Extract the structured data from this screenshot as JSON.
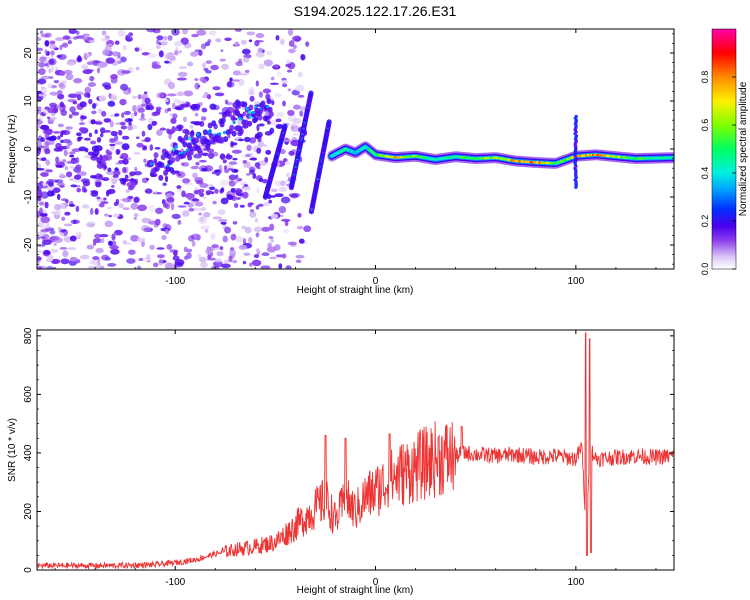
{
  "title": "S194.2025.122.17.26.E31",
  "colors": {
    "snr_line": "#ee3333",
    "colormap": [
      "#ffffff",
      "#e6d2f8",
      "#b57cf0",
      "#7a24e8",
      "#5a00e0",
      "#2a00ff",
      "#0060ff",
      "#00c8ff",
      "#00ff9a",
      "#60ff00",
      "#c8ff00",
      "#ffd000",
      "#ff7a00",
      "#ff0000",
      "#ff00b0"
    ]
  },
  "chart_data": [
    {
      "type": "heatmap",
      "title": "S194.2025.122.17.26.E31",
      "xlabel": "Height of straight line (km)",
      "ylabel": "Frequency (Hz)",
      "xlim": [
        -169,
        149
      ],
      "ylim": [
        -25,
        25
      ],
      "x_ticks": [
        -100,
        0,
        100
      ],
      "x_tick_labels": [
        "-100",
        "0",
        "100"
      ],
      "y_ticks": [
        -20,
        -10,
        0,
        10,
        20
      ],
      "y_tick_labels": [
        "-20",
        "-10",
        "0",
        "10",
        "20"
      ],
      "colorbar": {
        "label": "Normalized spectral amplitude",
        "range": [
          0,
          1
        ],
        "ticks": [
          0.0,
          0.2,
          0.4,
          0.6,
          0.8
        ],
        "tick_labels": [
          "0.0",
          "0.2",
          "0.4",
          "0.6",
          "0.8"
        ]
      },
      "features": {
        "main_line": {
          "x": [
            -22,
            -15,
            -10,
            -5,
            0,
            10,
            20,
            30,
            40,
            50,
            60,
            70,
            80,
            90,
            100,
            110,
            120,
            130,
            149
          ],
          "frequency_hz": [
            -1.5,
            0,
            -0.8,
            0.5,
            -1.2,
            -1.8,
            -1.5,
            -2.2,
            -1.6,
            -2.0,
            -1.8,
            -2.5,
            -2.8,
            -3.0,
            -1.5,
            -1.2,
            -1.6,
            -2.0,
            -1.8
          ],
          "amplitude": [
            0.45,
            0.5,
            0.4,
            0.45,
            0.55,
            0.8,
            0.6,
            0.45,
            0.55,
            0.6,
            0.65,
            0.85,
            0.9,
            0.6,
            0.75,
            0.9,
            0.7,
            0.55,
            0.5
          ]
        },
        "sloped_band": {
          "x": [
            -110,
            -100,
            -90,
            -80,
            -70,
            -60,
            -55
          ],
          "frequency_hz": [
            -4,
            -1,
            1.5,
            4,
            6,
            8,
            9
          ],
          "amplitude": [
            0.35,
            0.3,
            0.35,
            0.3,
            0.3,
            0.25,
            0.2
          ]
        },
        "streaks": [
          {
            "x0": -55,
            "f0": -10,
            "x1": -45,
            "f1": 5
          },
          {
            "x0": -42,
            "f0": -8,
            "x1": -32,
            "f1": 12
          },
          {
            "x0": -32,
            "f0": -13,
            "x1": -23,
            "f1": 6
          }
        ],
        "vertical_spike": {
          "x": 100,
          "f_range": [
            -8,
            7
          ]
        }
      }
    },
    {
      "type": "line",
      "xlabel": "Height of straight line (km)",
      "ylabel": "SNR (10 * v/v)",
      "xlim": [
        -169,
        149
      ],
      "ylim": [
        0,
        820
      ],
      "x_ticks": [
        -100,
        0,
        100
      ],
      "x_tick_labels": [
        "-100",
        "0",
        "100"
      ],
      "y_ticks": [
        0,
        200,
        400,
        600,
        800
      ],
      "y_tick_labels": [
        "0",
        "200",
        "400",
        "600",
        "800"
      ],
      "x": [
        -169,
        -150,
        -130,
        -110,
        -100,
        -90,
        -80,
        -70,
        -60,
        -50,
        -40,
        -30,
        -25,
        -20,
        -15,
        -10,
        -5,
        0,
        10,
        20,
        30,
        40,
        45,
        50,
        60,
        70,
        80,
        90,
        100,
        103,
        105,
        107,
        110,
        120,
        130,
        140,
        149
      ],
      "y": [
        15,
        15,
        15,
        18,
        25,
        35,
        55,
        70,
        80,
        95,
        150,
        210,
        240,
        170,
        240,
        200,
        250,
        270,
        320,
        350,
        380,
        390,
        400,
        395,
        390,
        395,
        385,
        390,
        380,
        420,
        150,
        420,
        380,
        385,
        390,
        385,
        390
      ],
      "spikes": [
        {
          "x": -25,
          "y": 460
        },
        {
          "x": -15,
          "y": 450
        },
        {
          "x": 7,
          "y": 465
        },
        {
          "x": 43,
          "y": 490
        },
        {
          "x": 105,
          "y": 810
        },
        {
          "x": 105.5,
          "y": 50
        },
        {
          "x": 107,
          "y": 790
        },
        {
          "x": 107.5,
          "y": 60
        }
      ]
    }
  ]
}
